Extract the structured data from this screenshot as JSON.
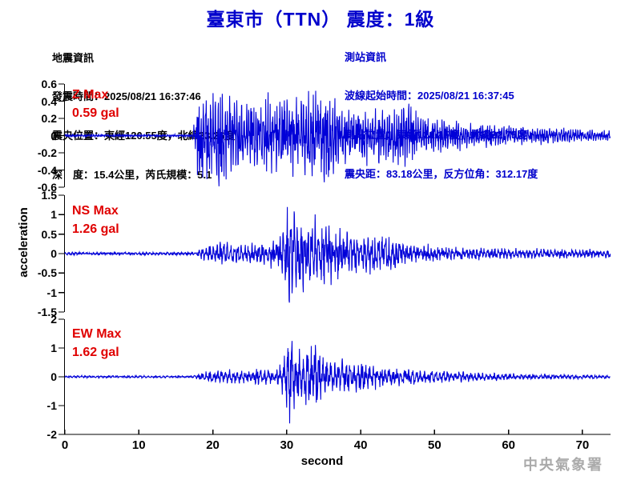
{
  "title": "臺東市（TTN） 震度：1級",
  "quake_info": {
    "heading": "地震資訊",
    "lines": [
      "發震時間：2025/08/21 16:37:46",
      "震央位置：東經120.55度，北緯23.26度",
      "深　度：15.4公里，芮氏規模：5.1"
    ]
  },
  "station_info": {
    "heading": "測站資訊",
    "lines": [
      "波線起始時間：2025/08/21 16:37:45",
      "測站位置：東經121.15度，北緯22.75度",
      "震央距：83.18公里，反方位角：312.17度"
    ]
  },
  "watermark": "中央氣象署",
  "colors": {
    "title_blue": "#0000cc",
    "waveform_blue": "#0000d8",
    "max_red": "#e00000",
    "watermark_gray": "#aaaaaa",
    "axis_black": "#000000"
  },
  "chart_data": {
    "type": "line",
    "subtype": "seismogram-3-component",
    "xlabel": "second",
    "ylabel": "acceleration",
    "unit": "gal",
    "x_range": [
      0,
      73.8
    ],
    "x_ticks": [
      0,
      10,
      20,
      30,
      40,
      50,
      60,
      70
    ],
    "grid": false,
    "legend": "none",
    "event_onset_s": 17.5,
    "peak_time_s": 30.3,
    "panels": [
      {
        "channel": "Z",
        "max_label": "Z Max",
        "max_value": "0.59 gal",
        "max_gal": 0.59,
        "ylim": [
          -0.6,
          0.6
        ],
        "yticks": [
          {
            "v": 0.6,
            "label": "0.6"
          },
          {
            "v": 0.4,
            "label": "0.4"
          },
          {
            "v": 0.2,
            "label": "0.2"
          },
          {
            "v": 0,
            "label": "0"
          },
          {
            "v": -0.2,
            "label": "-0.2"
          },
          {
            "v": -0.4,
            "label": "-0.4"
          },
          {
            "v": -0.6,
            "label": "-0.6"
          }
        ],
        "envelope_t_gal": [
          [
            0,
            0.014
          ],
          [
            5,
            0.016
          ],
          [
            8,
            0.015
          ],
          [
            15,
            0.014
          ],
          [
            17.2,
            0.014
          ],
          [
            17.6,
            0.2
          ],
          [
            18,
            0.5
          ],
          [
            19.5,
            0.52
          ],
          [
            20.5,
            0.55
          ],
          [
            22,
            0.5
          ],
          [
            23.5,
            0.38
          ],
          [
            25.5,
            0.36
          ],
          [
            27,
            0.45
          ],
          [
            28.5,
            0.42
          ],
          [
            30,
            0.4
          ],
          [
            31.5,
            0.42
          ],
          [
            33,
            0.45
          ],
          [
            33.9,
            0.62
          ],
          [
            34.5,
            0.5
          ],
          [
            35.4,
            0.55
          ],
          [
            36.5,
            0.38
          ],
          [
            38,
            0.33
          ],
          [
            40,
            0.3
          ],
          [
            42,
            0.3
          ],
          [
            44,
            0.28
          ],
          [
            46.5,
            0.35
          ],
          [
            47.5,
            0.25
          ],
          [
            49,
            0.2
          ],
          [
            52,
            0.17
          ],
          [
            55,
            0.14
          ],
          [
            58,
            0.12
          ],
          [
            62,
            0.1
          ],
          [
            66,
            0.09
          ],
          [
            70,
            0.07
          ],
          [
            73.8,
            0.06
          ]
        ]
      },
      {
        "channel": "NS",
        "max_label": "NS Max",
        "max_value": "1.26 gal",
        "max_gal": 1.26,
        "ylim": [
          -1.5,
          1.5
        ],
        "yticks": [
          {
            "v": 1.5,
            "label": "1.5"
          },
          {
            "v": 1,
            "label": "1"
          },
          {
            "v": 0.5,
            "label": "0.5"
          },
          {
            "v": 0,
            "label": "0"
          },
          {
            "v": -0.5,
            "label": "-0.5"
          },
          {
            "v": -1,
            "label": "-1"
          },
          {
            "v": -1.5,
            "label": "-1.5"
          }
        ],
        "envelope_t_gal": [
          [
            0,
            0.03
          ],
          [
            17.5,
            0.032
          ],
          [
            18.1,
            0.1
          ],
          [
            19,
            0.16
          ],
          [
            20,
            0.2
          ],
          [
            21.5,
            0.24
          ],
          [
            23,
            0.2
          ],
          [
            24.5,
            0.18
          ],
          [
            26,
            0.22
          ],
          [
            27.5,
            0.26
          ],
          [
            28.8,
            0.35
          ],
          [
            29.6,
            0.5
          ],
          [
            30,
            0.8
          ],
          [
            30.3,
            1.3
          ],
          [
            30.7,
            1.05
          ],
          [
            31.2,
            0.85
          ],
          [
            32,
            0.8
          ],
          [
            32.8,
            0.7
          ],
          [
            33.5,
            0.75
          ],
          [
            34.5,
            0.65
          ],
          [
            35.3,
            0.68
          ],
          [
            36.5,
            0.55
          ],
          [
            38,
            0.48
          ],
          [
            40,
            0.42
          ],
          [
            41.5,
            0.45
          ],
          [
            43,
            0.38
          ],
          [
            45,
            0.33
          ],
          [
            47,
            0.22
          ],
          [
            49,
            0.18
          ],
          [
            51,
            0.15
          ],
          [
            54,
            0.13
          ],
          [
            58,
            0.12
          ],
          [
            62,
            0.1
          ],
          [
            66,
            0.1
          ],
          [
            70,
            0.09
          ],
          [
            73.8,
            0.08
          ]
        ]
      },
      {
        "channel": "EW",
        "max_label": "EW Max",
        "max_value": "1.62 gal",
        "max_gal": 1.62,
        "ylim": [
          -2,
          2
        ],
        "yticks": [
          {
            "v": 2,
            "label": "2"
          },
          {
            "v": 1,
            "label": "1"
          },
          {
            "v": 0,
            "label": "0"
          },
          {
            "v": -1,
            "label": "-1"
          },
          {
            "v": -2,
            "label": "-2"
          }
        ],
        "envelope_t_gal": [
          [
            0,
            0.04
          ],
          [
            17.5,
            0.042
          ],
          [
            18.2,
            0.12
          ],
          [
            19.5,
            0.2
          ],
          [
            21,
            0.24
          ],
          [
            23,
            0.22
          ],
          [
            25,
            0.24
          ],
          [
            26.5,
            0.3
          ],
          [
            28,
            0.28
          ],
          [
            29.2,
            0.4
          ],
          [
            29.9,
            0.9
          ],
          [
            30.2,
            1.65
          ],
          [
            30.6,
            1.3
          ],
          [
            31.1,
            1.1
          ],
          [
            31.8,
            0.9
          ],
          [
            32.4,
            1.1
          ],
          [
            33,
            0.85
          ],
          [
            33.6,
            1.2
          ],
          [
            34.1,
            1.15
          ],
          [
            34.8,
            0.7
          ],
          [
            35.6,
            0.62
          ],
          [
            36.6,
            0.58
          ],
          [
            37.6,
            0.62
          ],
          [
            38.6,
            0.5
          ],
          [
            40,
            0.48
          ],
          [
            41.5,
            0.42
          ],
          [
            43,
            0.36
          ],
          [
            45,
            0.32
          ],
          [
            47,
            0.28
          ],
          [
            49,
            0.25
          ],
          [
            51,
            0.21
          ],
          [
            53.5,
            0.17
          ],
          [
            56,
            0.14
          ],
          [
            59,
            0.12
          ],
          [
            62,
            0.1
          ],
          [
            66,
            0.08
          ],
          [
            70,
            0.07
          ],
          [
            73.8,
            0.06
          ]
        ]
      }
    ]
  }
}
